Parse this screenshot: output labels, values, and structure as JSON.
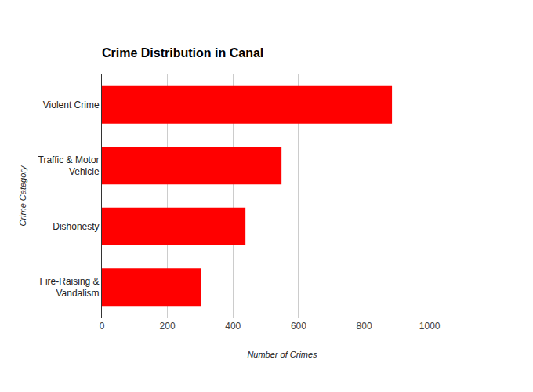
{
  "chart_data": {
    "type": "bar",
    "orientation": "horizontal",
    "title": "Crime Distribution in Canal",
    "x_label": "Number of Crimes",
    "y_label": "Crime Category",
    "categories": [
      "Violent Crime",
      "Traffic & Motor Vehicle",
      "Dishonesty",
      "Fire-Raising & Vandalism"
    ],
    "values": [
      885,
      548,
      438,
      302
    ],
    "color": "#ff0000",
    "xlim": [
      0,
      1100
    ],
    "xticks": [
      0,
      200,
      400,
      600,
      800,
      1000
    ],
    "grid": true
  }
}
